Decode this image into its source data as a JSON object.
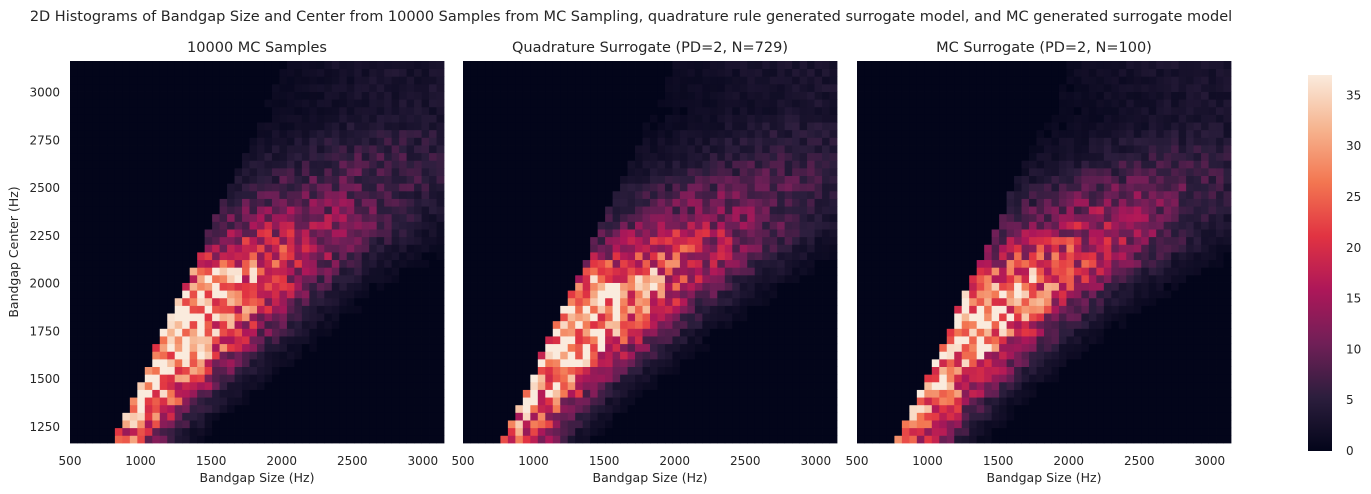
{
  "figure": {
    "suptitle": "2D Histograms of Bandgap Size and Center from 10000 Samples from MC Sampling, quadrature rule generated surrogate model, and MC generated surrogate model"
  },
  "colors": {
    "background": "#ffffff",
    "text": "#262626",
    "colormap": "rocket",
    "colormap_stops": [
      "#03051a",
      "#2c1e3d",
      "#701f57",
      "#ad1759",
      "#e13342",
      "#f37651",
      "#f6b48f",
      "#faebdd"
    ]
  },
  "chart_data": [
    {
      "type": "heatmap",
      "title": "10000 MC Samples",
      "xlabel": "Bandgap Size (Hz)",
      "ylabel": "Bandgap Center (Hz)",
      "xlim": [
        500,
        3150
      ],
      "ylim": [
        1165,
        3165
      ],
      "xticks": [
        500,
        1000,
        1500,
        2000,
        2500,
        3000
      ],
      "xtick_labels": [
        "500",
        "1000",
        "1500",
        "2000",
        "2500",
        "3000"
      ],
      "yticks": [
        1250,
        1500,
        1750,
        2000,
        2250,
        2500,
        2750,
        3000
      ],
      "ytick_labels": [
        "1250",
        "1500",
        "1750",
        "2000",
        "2250",
        "2500",
        "2750",
        "3000"
      ],
      "grid": false,
      "bins": [
        50,
        50
      ],
      "density_model": {
        "ridge": [
          [
            850,
            1200,
            24
          ],
          [
            1000,
            1400,
            30
          ],
          [
            1250,
            1700,
            35
          ],
          [
            1400,
            1900,
            36
          ],
          [
            1600,
            2050,
            28
          ],
          [
            1900,
            2200,
            18
          ],
          [
            2300,
            2450,
            10
          ],
          [
            2700,
            2700,
            6
          ],
          [
            3000,
            2900,
            3
          ]
        ],
        "lower_x_edge_at_ymin": 830,
        "spread": 1.0
      }
    },
    {
      "type": "heatmap",
      "title": "Quadrature Surrogate (PD=2, N=729)",
      "xlabel": "Bandgap Size (Hz)",
      "ylabel": "",
      "xlim": [
        500,
        3150
      ],
      "ylim": [
        1165,
        3165
      ],
      "xticks": [
        500,
        1000,
        1500,
        2000,
        2500,
        3000
      ],
      "xtick_labels": [
        "500",
        "1000",
        "1500",
        "2000",
        "2500",
        "3000"
      ],
      "yticks": [],
      "ytick_labels": [],
      "grid": false,
      "bins": [
        50,
        50
      ],
      "density_model": {
        "ridge": [
          [
            850,
            1200,
            22
          ],
          [
            950,
            1400,
            30
          ],
          [
            1200,
            1650,
            35
          ],
          [
            1400,
            1850,
            36
          ],
          [
            1600,
            2000,
            30
          ],
          [
            1900,
            2150,
            20
          ],
          [
            2300,
            2400,
            11
          ],
          [
            2700,
            2650,
            6
          ],
          [
            3050,
            2900,
            3
          ]
        ],
        "lower_x_edge_at_ymin": 800,
        "spread": 1.0
      }
    },
    {
      "type": "heatmap",
      "title": "MC Surrogate (PD=2, N=100)",
      "xlabel": "Bandgap Size (Hz)",
      "ylabel": "",
      "xlim": [
        500,
        3150
      ],
      "ylim": [
        1165,
        3165
      ],
      "xticks": [
        500,
        1000,
        1500,
        2000,
        2500,
        3000
      ],
      "xtick_labels": [
        "500",
        "1000",
        "1500",
        "2000",
        "2500",
        "3000"
      ],
      "yticks": [],
      "ytick_labels": [],
      "grid": false,
      "bins": [
        50,
        50
      ],
      "density_model": {
        "ridge": [
          [
            850,
            1200,
            22
          ],
          [
            950,
            1400,
            30
          ],
          [
            1200,
            1700,
            35
          ],
          [
            1400,
            1900,
            36
          ],
          [
            1600,
            2000,
            28
          ],
          [
            1900,
            2150,
            20
          ],
          [
            2300,
            2400,
            12
          ],
          [
            2700,
            2650,
            6
          ],
          [
            3050,
            2850,
            3
          ]
        ],
        "lower_x_edge_at_ymin": 810,
        "spread": 1.0
      }
    }
  ],
  "colorbar": {
    "min": 0,
    "max": 37,
    "ticks": [
      0,
      5,
      10,
      15,
      20,
      25,
      30,
      35
    ],
    "tick_labels": [
      "0",
      "5",
      "10",
      "15",
      "20",
      "25",
      "30",
      "35"
    ]
  }
}
